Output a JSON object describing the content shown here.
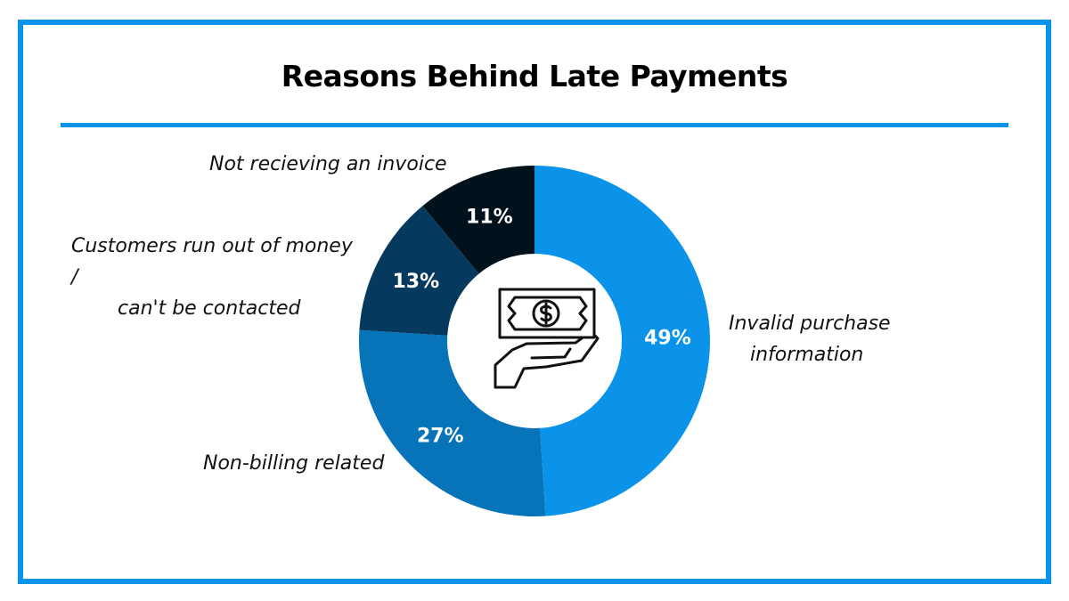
{
  "chart_data": {
    "type": "pie",
    "donut": true,
    "title": "Reasons Behind Late Payments",
    "categories": [
      "Invalid purchase information",
      "Non-billing related",
      "Customers run out of money / can't be contacted",
      "Not recieving an invoice"
    ],
    "values": [
      49,
      27,
      13,
      11
    ],
    "value_labels": [
      "49%",
      "27%",
      "13%",
      "11%"
    ],
    "colors": [
      "#0a93e8",
      "#0773b8",
      "#053a5e",
      "#02121c"
    ],
    "center_icon": "hand-holding-money-icon"
  },
  "labels": {
    "invalid_line1": "Invalid purchase",
    "invalid_line2": "information",
    "nonbilling": "Non-billing related",
    "customers_line1": "Customers run out of money /",
    "customers_line2": "can't be contacted",
    "invoice": "Not recieving an invoice"
  },
  "colors": {
    "frame": "#0a93e8"
  }
}
